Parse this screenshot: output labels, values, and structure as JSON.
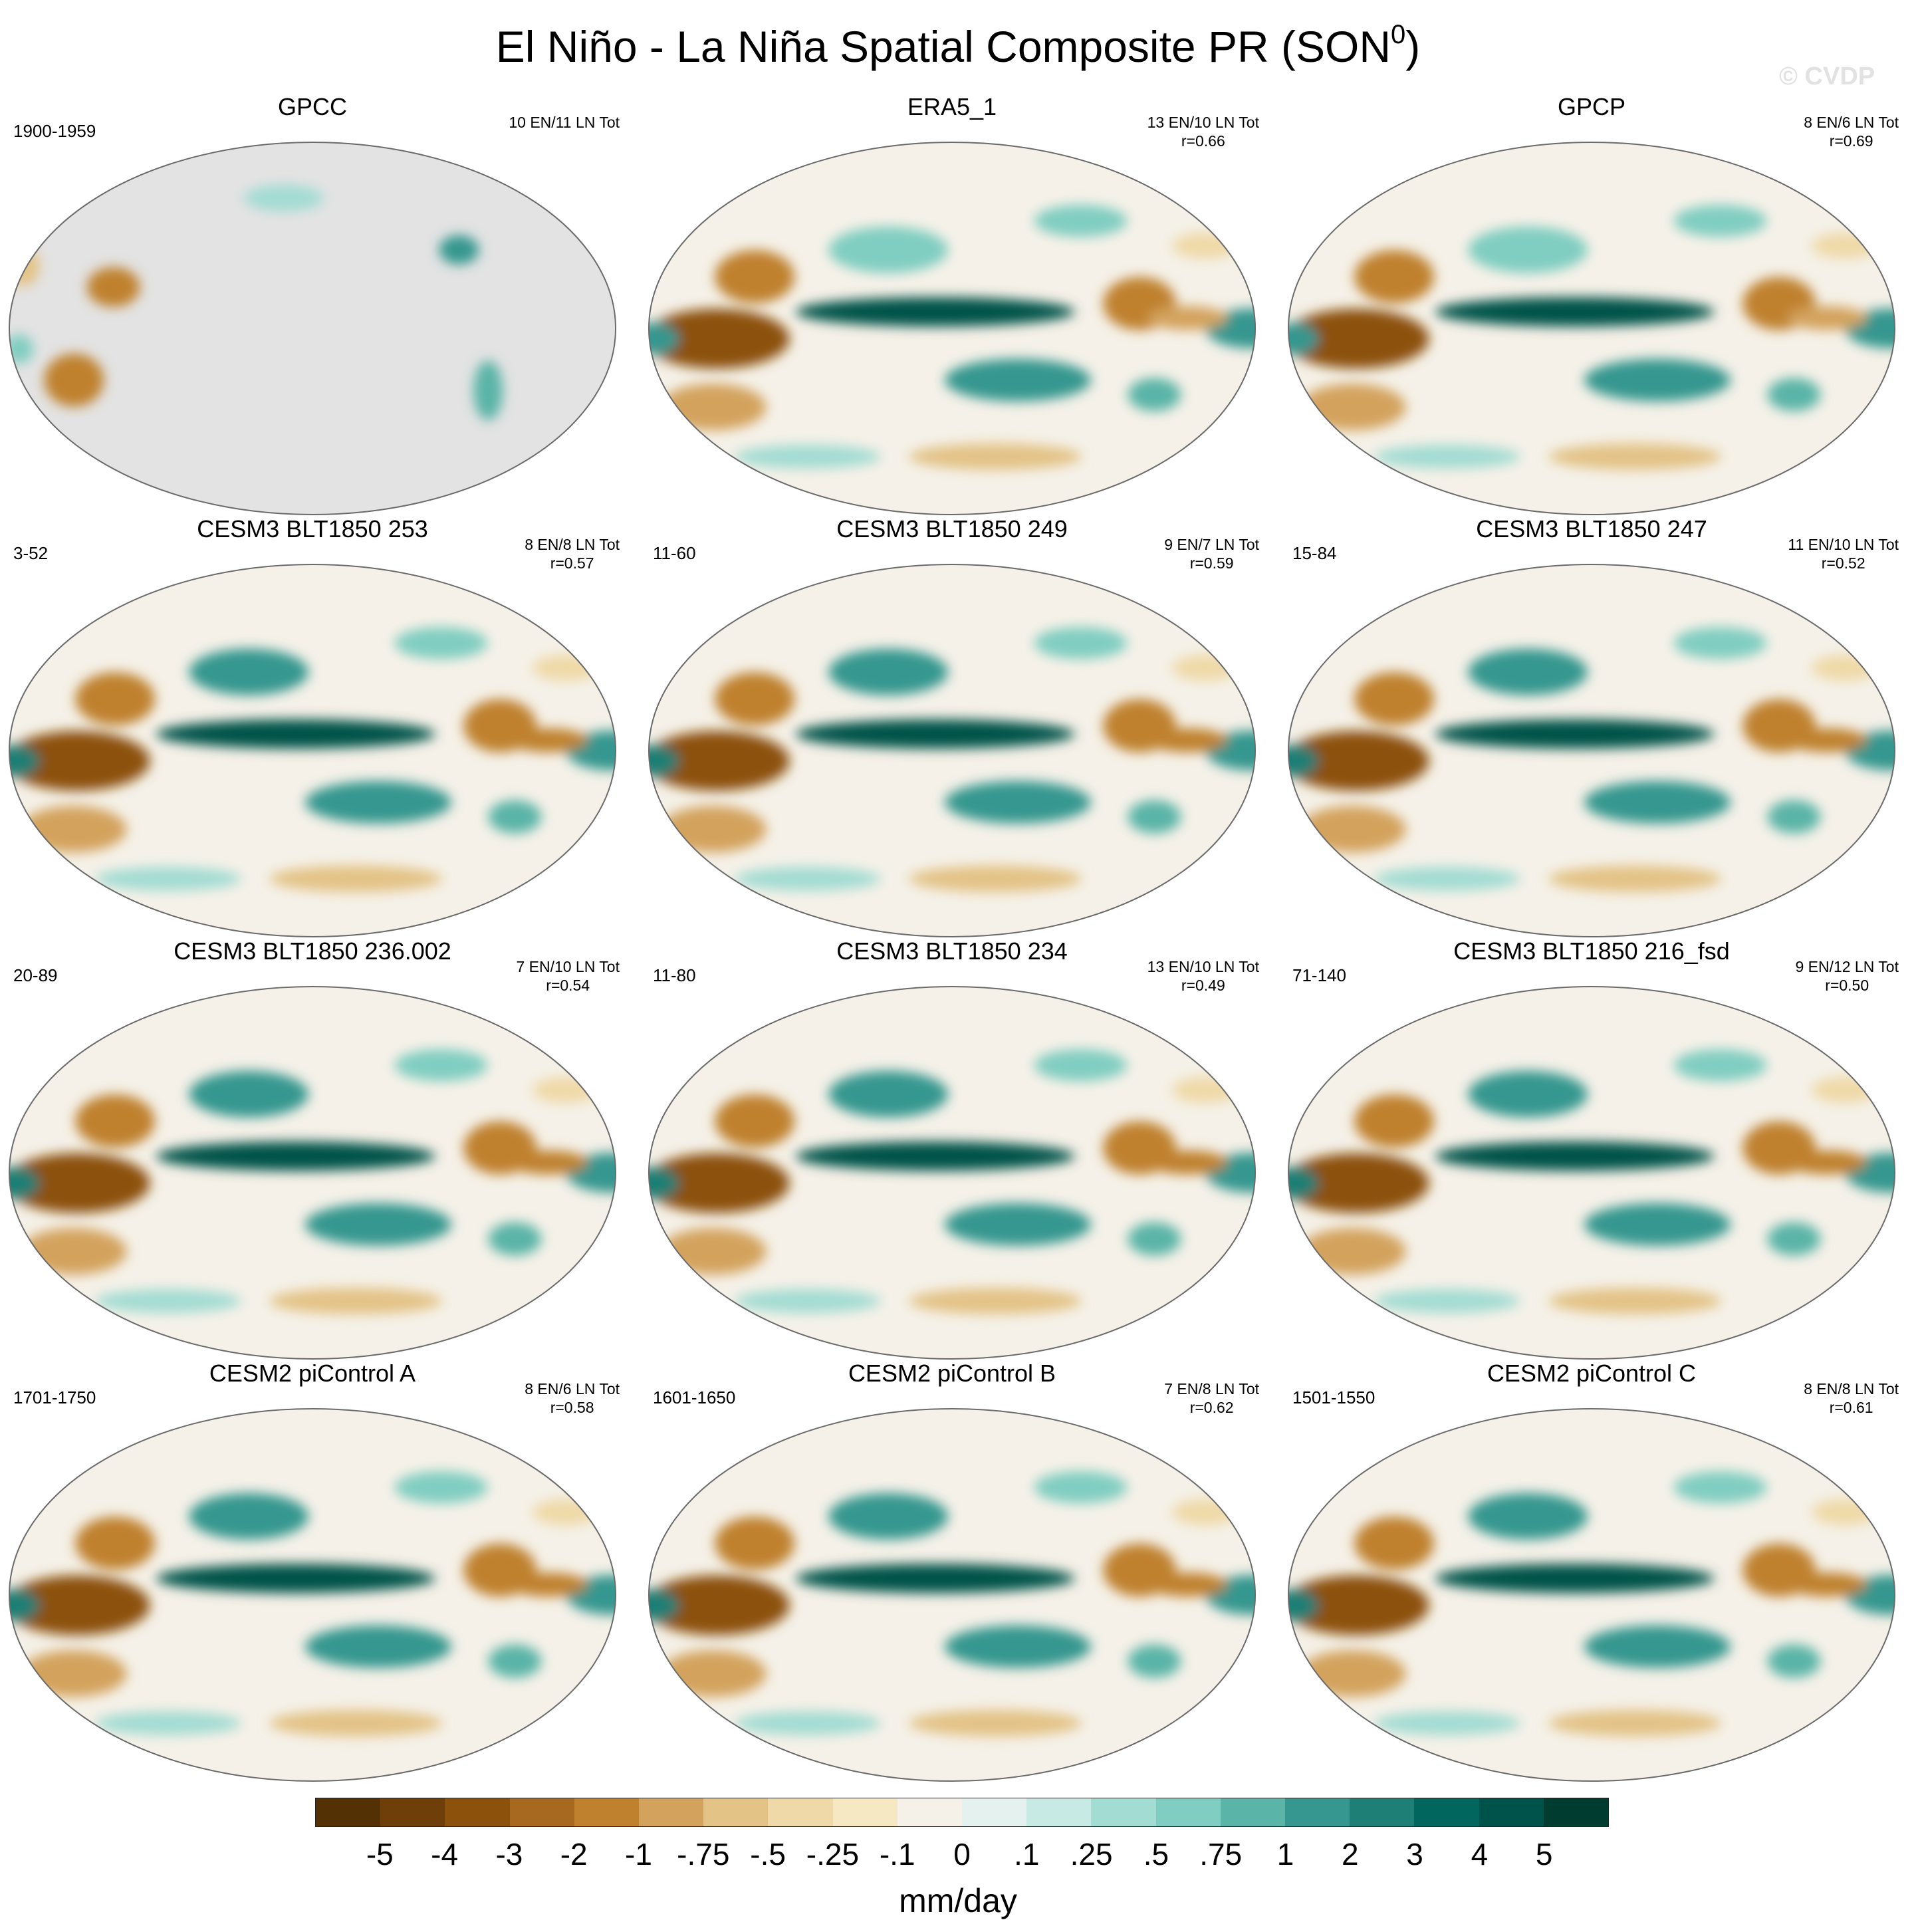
{
  "figure": {
    "title": "El Niño - La Niña Spatial Composite PR (SON",
    "title_sup": "0",
    "title_close": ")",
    "watermark": "© CVDP"
  },
  "panels": [
    {
      "title": "GPCC",
      "years": "1900-1959",
      "counts": "10 EN/11 LN Tot",
      "r": "",
      "style": "obs_land"
    },
    {
      "title": "ERA5_1",
      "years": "",
      "counts": "13 EN/10 LN Tot",
      "r": "r=0.66",
      "style": "obs"
    },
    {
      "title": "GPCP",
      "years": "",
      "counts": "8 EN/6 LN Tot",
      "r": "r=0.69",
      "style": "obs"
    },
    {
      "title": "CESM3 BLT1850 253",
      "years": "3-52",
      "counts": "8 EN/8 LN Tot",
      "r": "r=0.57",
      "style": "model"
    },
    {
      "title": "CESM3 BLT1850 249",
      "years": "11-60",
      "counts": "9 EN/7 LN Tot",
      "r": "r=0.59",
      "style": "model"
    },
    {
      "title": "CESM3 BLT1850 247",
      "years": "15-84",
      "counts": "11 EN/10 LN Tot",
      "r": "r=0.52",
      "style": "model"
    },
    {
      "title": "CESM3 BLT1850 236.002",
      "years": "20-89",
      "counts": "7 EN/10 LN Tot",
      "r": "r=0.54",
      "style": "model"
    },
    {
      "title": "CESM3 BLT1850 234",
      "years": "11-80",
      "counts": "13 EN/10 LN Tot",
      "r": "r=0.49",
      "style": "model"
    },
    {
      "title": "CESM3 BLT1850 216_fsd",
      "years": "71-140",
      "counts": "9 EN/12 LN Tot",
      "r": "r=0.50",
      "style": "model"
    },
    {
      "title": "CESM2 piControl A",
      "years": "1701-1750",
      "counts": "8 EN/6 LN Tot",
      "r": "r=0.58",
      "style": "model"
    },
    {
      "title": "CESM2 piControl B",
      "years": "1601-1650",
      "counts": "7 EN/8 LN Tot",
      "r": "r=0.62",
      "style": "model"
    },
    {
      "title": "CESM2 piControl C",
      "years": "1501-1550",
      "counts": "8 EN/8 LN Tot",
      "r": "r=0.61",
      "style": "model"
    }
  ],
  "colorbar": {
    "labels": [
      "-5",
      "-4",
      "-3",
      "-2",
      "-1",
      "-.75",
      "-.5",
      "-.25",
      "-.1",
      "0",
      ".1",
      ".25",
      ".5",
      ".75",
      "1",
      "2",
      "3",
      "4",
      "5"
    ],
    "colors": [
      "#543005",
      "#6e3f09",
      "#8c510a",
      "#a6691f",
      "#bf812d",
      "#d3a35d",
      "#e3c386",
      "#efd9a8",
      "#f6e8c3",
      "#f5f1e8",
      "#e4f1ef",
      "#c7eae5",
      "#a3dcd3",
      "#80cdc1",
      "#5ab4a7",
      "#35978f",
      "#1d7f75",
      "#01665e",
      "#00534a",
      "#003c30"
    ],
    "units": "mm/day"
  },
  "chart_data": {
    "type": "heatmap",
    "title": "El Niño - La Niña Spatial Composite PR (SON0)",
    "variable": "precipitation anomaly",
    "units": "mm/day",
    "levels": [
      -5,
      -4,
      -3,
      -2,
      -1,
      -0.75,
      -0.5,
      -0.25,
      -0.1,
      0,
      0.1,
      0.25,
      0.5,
      0.75,
      1,
      2,
      3,
      4,
      5
    ],
    "layout": "4 rows x 3 columns of global Robinson-projection maps",
    "panels": [
      {
        "name": "GPCC",
        "period": "1900-1959",
        "el_nino_events": 10,
        "la_nina_events": 11,
        "pattern_correlation": null
      },
      {
        "name": "ERA5_1",
        "period": null,
        "el_nino_events": 13,
        "la_nina_events": 10,
        "pattern_correlation": 0.66
      },
      {
        "name": "GPCP",
        "period": null,
        "el_nino_events": 8,
        "la_nina_events": 6,
        "pattern_correlation": 0.69
      },
      {
        "name": "CESM3 BLT1850 253",
        "period": "3-52",
        "el_nino_events": 8,
        "la_nina_events": 8,
        "pattern_correlation": 0.57
      },
      {
        "name": "CESM3 BLT1850 249",
        "period": "11-60",
        "el_nino_events": 9,
        "la_nina_events": 7,
        "pattern_correlation": 0.59
      },
      {
        "name": "CESM3 BLT1850 247",
        "period": "15-84",
        "el_nino_events": 11,
        "la_nina_events": 10,
        "pattern_correlation": 0.52
      },
      {
        "name": "CESM3 BLT1850 236.002",
        "period": "20-89",
        "el_nino_events": 7,
        "la_nina_events": 10,
        "pattern_correlation": 0.54
      },
      {
        "name": "CESM3 BLT1850 234",
        "period": "11-80",
        "el_nino_events": 13,
        "la_nina_events": 10,
        "pattern_correlation": 0.49
      },
      {
        "name": "CESM3 BLT1850 216_fsd",
        "period": "71-140",
        "el_nino_events": 9,
        "la_nina_events": 12,
        "pattern_correlation": 0.5
      },
      {
        "name": "CESM2 piControl A",
        "period": "1701-1750",
        "el_nino_events": 8,
        "la_nina_events": 6,
        "pattern_correlation": 0.58
      },
      {
        "name": "CESM2 piControl B",
        "period": "1601-1650",
        "el_nino_events": 7,
        "la_nina_events": 8,
        "pattern_correlation": 0.62
      },
      {
        "name": "CESM2 piControl C",
        "period": "1501-1550",
        "el_nino_events": 8,
        "la_nina_events": 8,
        "pattern_correlation": 0.61
      }
    ]
  }
}
